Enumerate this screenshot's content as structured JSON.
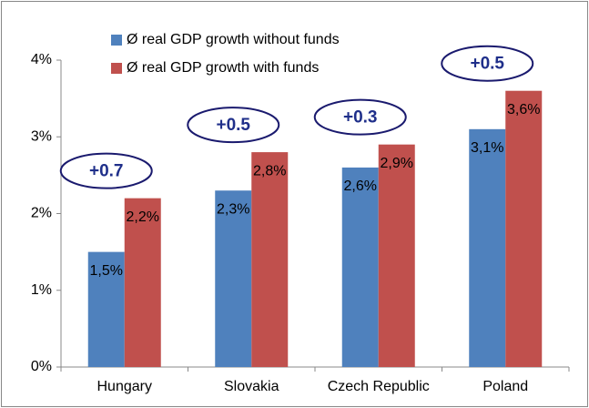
{
  "chart_data": {
    "type": "bar",
    "categories": [
      "Hungary",
      "Slovakia",
      "Czech Republic",
      "Poland"
    ],
    "series": [
      {
        "name": "Ø real GDP growth without funds",
        "color": "#4f81bd",
        "values": [
          1.5,
          2.3,
          2.6,
          3.1
        ],
        "value_labels": [
          "1,5%",
          "2,3%",
          "2,6%",
          "3,1%"
        ]
      },
      {
        "name": "Ø real GDP growth with funds",
        "color": "#c0504d",
        "values": [
          2.2,
          2.8,
          2.9,
          3.6
        ],
        "value_labels": [
          "2,2%",
          "2,8%",
          "2,9%",
          "3,6%"
        ]
      }
    ],
    "annotations": [
      "+0.7",
      "+0.5",
      "+0.3",
      "+0.5"
    ],
    "ylim": [
      0,
      4
    ],
    "yticks": [
      {
        "value": 0,
        "label": "0%"
      },
      {
        "value": 1,
        "label": "1%"
      },
      {
        "value": 2,
        "label": "2%"
      },
      {
        "value": 3,
        "label": "3%"
      },
      {
        "value": 4,
        "label": "4%"
      }
    ],
    "legend": "top-left"
  }
}
